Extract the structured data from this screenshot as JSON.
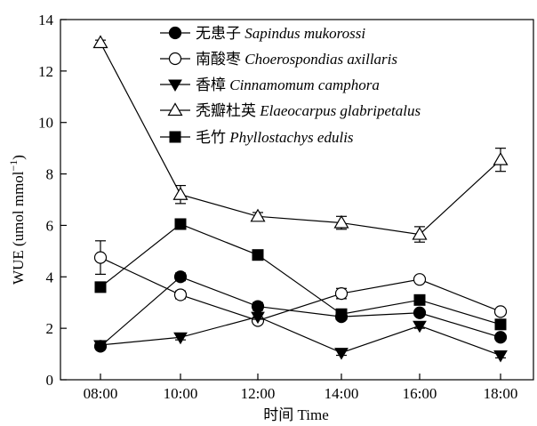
{
  "chart_data": {
    "type": "line",
    "xlabel": "时间 Time",
    "ylabel": "WUE (umol mmol",
    "ylabel_sup": "−1",
    "ylabel_close": ")",
    "ylim": [
      0,
      14
    ],
    "yticks": [
      0,
      2,
      4,
      6,
      8,
      10,
      12,
      14
    ],
    "categories": [
      "08:00",
      "10:00",
      "12:00",
      "14:00",
      "16:00",
      "18:00"
    ],
    "series": [
      {
        "name_cn": "无患子",
        "name_latin": "Sapindus mukorossi",
        "marker": "circle-filled",
        "values": [
          1.3,
          4.0,
          2.85,
          2.45,
          2.6,
          1.65
        ],
        "errors": [
          0.1,
          0.15,
          0.15,
          0.1,
          0.1,
          0.1
        ]
      },
      {
        "name_cn": "南酸枣",
        "name_latin": "Choerospondias axillaris",
        "marker": "circle-open",
        "values": [
          4.75,
          3.3,
          2.3,
          3.35,
          3.9,
          2.65
        ],
        "errors": [
          0.65,
          0.15,
          0.1,
          0.2,
          0.1,
          0.1
        ]
      },
      {
        "name_cn": "香樟",
        "name_latin": "Cinnamomum camphora",
        "marker": "triangle-down-filled",
        "values": [
          1.35,
          1.65,
          2.45,
          1.05,
          2.1,
          0.95
        ],
        "errors": [
          0.1,
          0.1,
          0.1,
          0.1,
          0.1,
          0.1
        ]
      },
      {
        "name_cn": "秃瓣杜英",
        "name_latin": "Elaeocarpus glabripetalus",
        "marker": "triangle-up-open",
        "values": [
          13.1,
          7.2,
          6.35,
          6.1,
          5.65,
          8.55
        ],
        "errors": [
          0.1,
          0.35,
          0.15,
          0.25,
          0.3,
          0.45
        ]
      },
      {
        "name_cn": "毛竹",
        "name_latin": "Phyllostachys edulis",
        "marker": "square-filled",
        "values": [
          3.6,
          6.05,
          4.85,
          2.55,
          3.1,
          2.15
        ],
        "errors": [
          0.15,
          0.1,
          0.1,
          0.1,
          0.15,
          0.15
        ]
      }
    ]
  }
}
